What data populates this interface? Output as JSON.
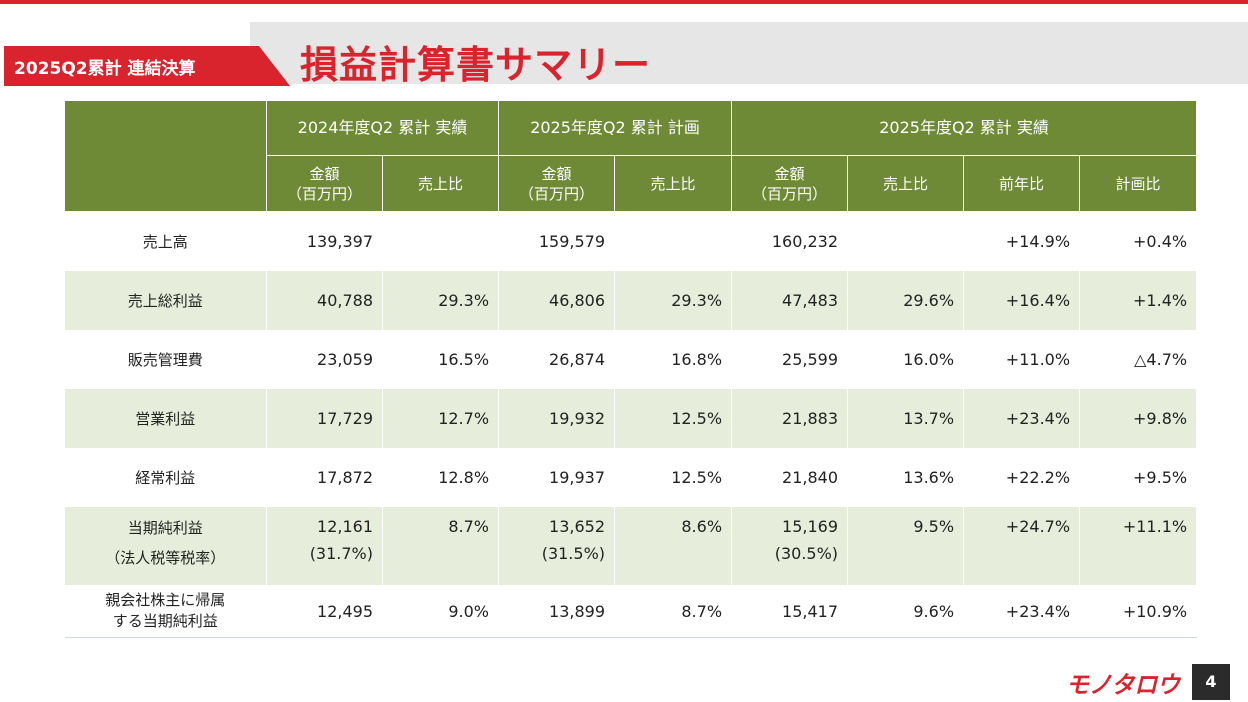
{
  "header": {
    "section_tag": "2025Q2累計 連結決算",
    "title": "損益計算書サマリー"
  },
  "table": {
    "groups": [
      "2024年度Q2 累計 実績",
      "2025年度Q2 累計 計画",
      "2025年度Q2 累計 実績"
    ],
    "subheaders": {
      "amount_line1": "金額",
      "amount_line2": "（百万円）",
      "sales_ratio": "売上比",
      "yoy": "前年比",
      "vs_plan": "計画比"
    },
    "rows": [
      {
        "label": "売上高",
        "a24": "139,397",
        "r24": "",
        "a25p": "159,579",
        "r25p": "",
        "a25": "160,232",
        "r25": "",
        "yoy": "+14.9%",
        "plan": "+0.4%"
      },
      {
        "label": "売上総利益",
        "a24": "40,788",
        "r24": "29.3%",
        "a25p": "46,806",
        "r25p": "29.3%",
        "a25": "47,483",
        "r25": "29.6%",
        "yoy": "+16.4%",
        "plan": "+1.4%"
      },
      {
        "label": "販売管理費",
        "a24": "23,059",
        "r24": "16.5%",
        "a25p": "26,874",
        "r25p": "16.8%",
        "a25": "25,599",
        "r25": "16.0%",
        "yoy": "+11.0%",
        "plan": "△4.7%"
      },
      {
        "label": "営業利益",
        "a24": "17,729",
        "r24": "12.7%",
        "a25p": "19,932",
        "r25p": "12.5%",
        "a25": "21,883",
        "r25": "13.7%",
        "yoy": "+23.4%",
        "plan": "+9.8%"
      },
      {
        "label": "経常利益",
        "a24": "17,872",
        "r24": "12.8%",
        "a25p": "19,937",
        "r25p": "12.5%",
        "a25": "21,840",
        "r25": "13.6%",
        "yoy": "+22.2%",
        "plan": "+9.5%"
      },
      {
        "label": "当期純利益",
        "label2": "（法人税等税率）",
        "a24": "12,161",
        "a24_sub": "(31.7%)",
        "r24": "8.7%",
        "a25p": "13,652",
        "a25p_sub": "(31.5%)",
        "r25p": "8.6%",
        "a25": "15,169",
        "a25_sub": "(30.5%)",
        "r25": "9.5%",
        "yoy": "+24.7%",
        "plan": "+11.1%"
      },
      {
        "label": "親会社株主に帰属",
        "label2": "する当期純利益",
        "a24": "12,495",
        "r24": "9.0%",
        "a25p": "13,899",
        "r25p": "8.7%",
        "a25": "15,417",
        "r25": "9.6%",
        "yoy": "+23.4%",
        "plan": "+10.9%"
      }
    ]
  },
  "footer": {
    "logo_text": "モノタロウ",
    "page_number": "4"
  },
  "colors": {
    "brand_red": "#d9232d",
    "header_green": "#6f8a37",
    "row_shade": "#e6eedb",
    "band_gray": "#e6e6e6"
  }
}
